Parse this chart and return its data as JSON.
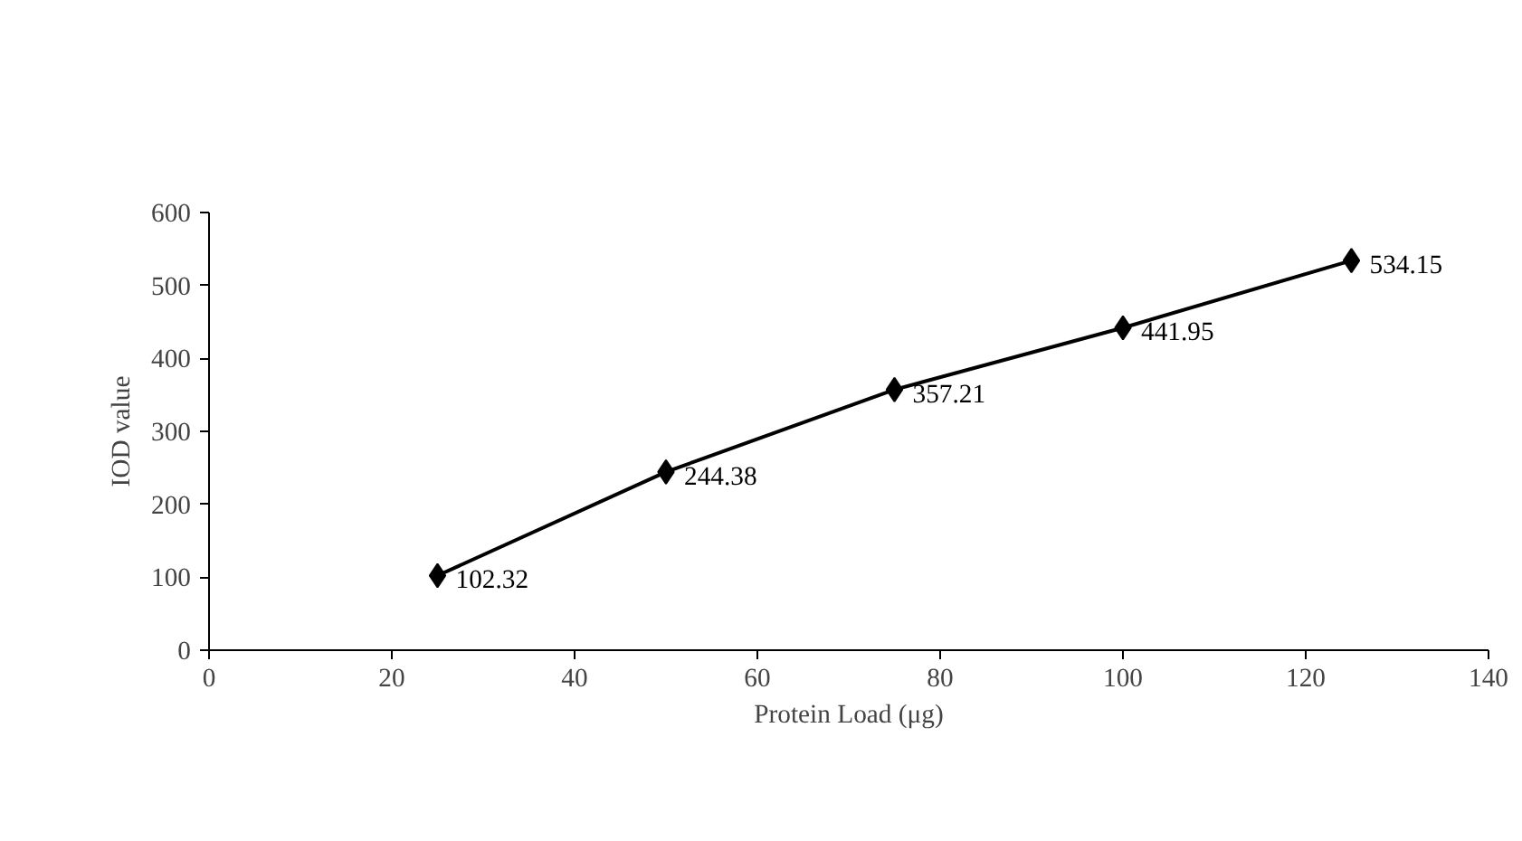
{
  "chart_data": {
    "type": "line",
    "xlabel": "Protein Load (μg)",
    "ylabel": "IOD value",
    "x": [
      25,
      50,
      75,
      100,
      125
    ],
    "series": [
      {
        "color": "#000000",
        "values": [
          102.32,
          244.38,
          357.21,
          441.95,
          534.15
        ]
      }
    ],
    "xlim": [
      0,
      140
    ],
    "xticks": [
      0,
      20,
      40,
      60,
      80,
      100,
      120,
      140
    ],
    "ylim": [
      0,
      600
    ],
    "yticks": [
      0,
      100,
      200,
      300,
      400,
      500,
      600
    ],
    "marker": "diamond",
    "line_style": "solid",
    "data_labels": true,
    "grid": false
  }
}
